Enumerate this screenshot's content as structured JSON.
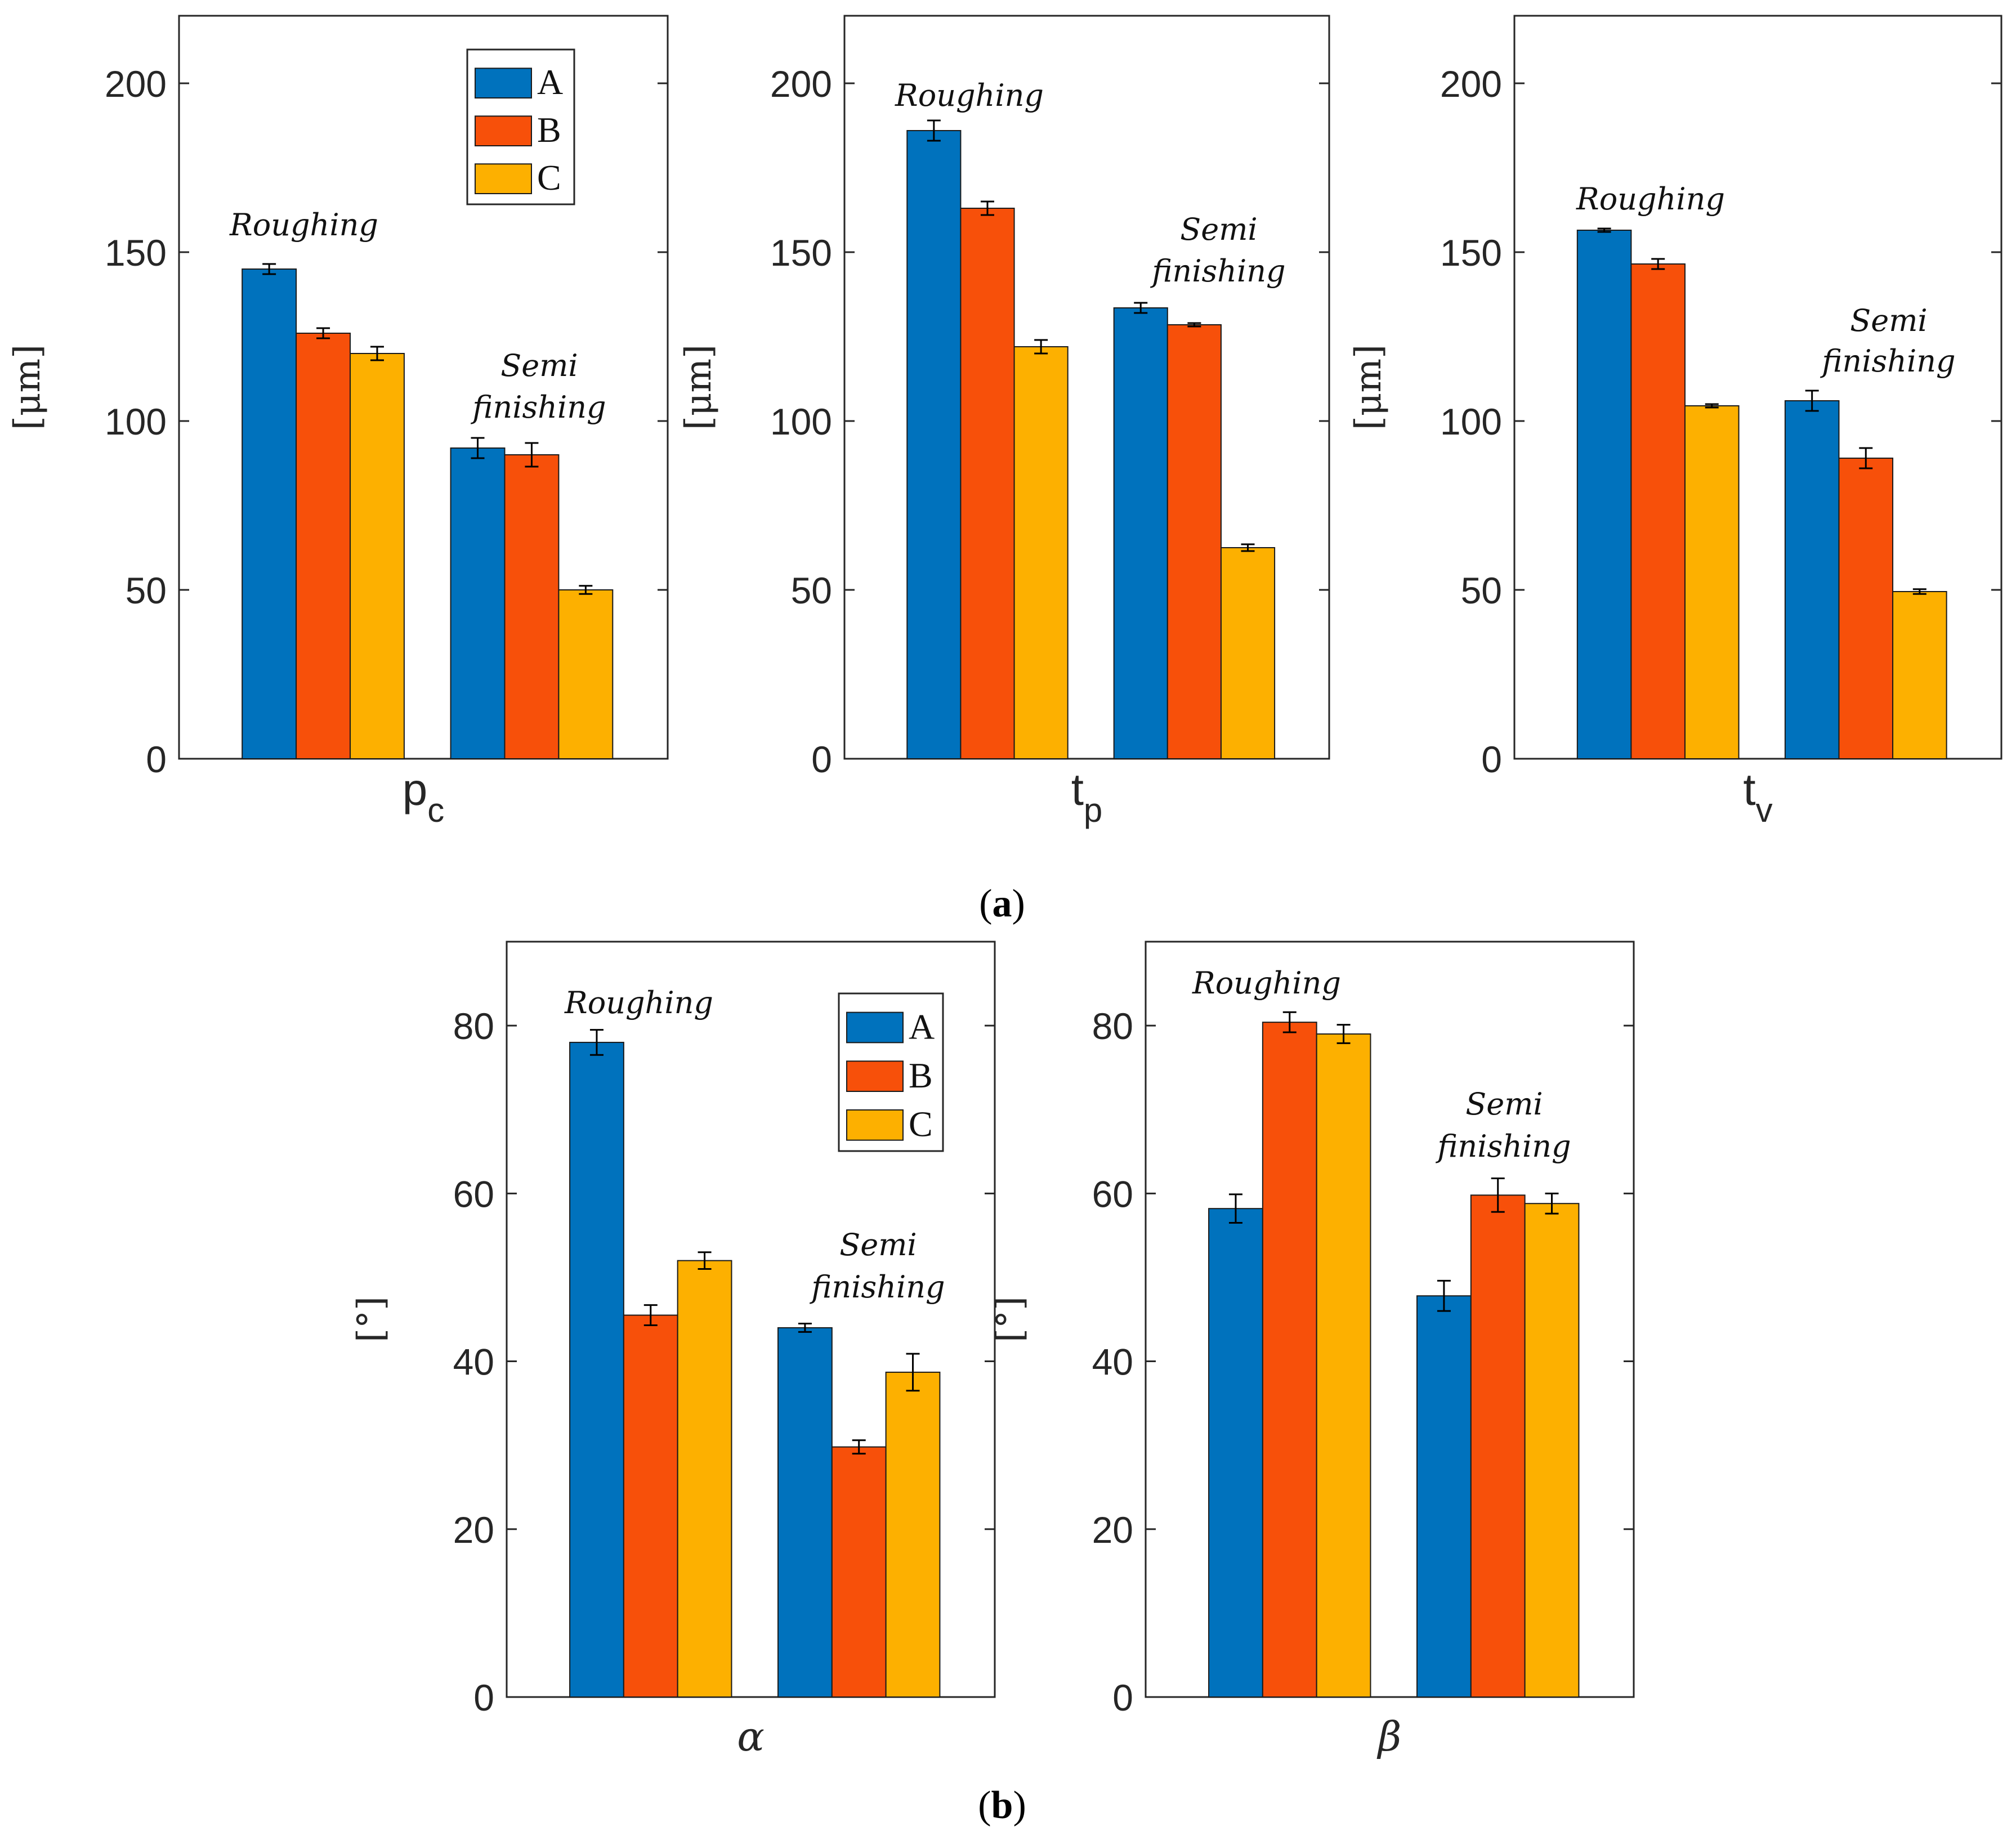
{
  "colors": {
    "A": "#0072BD",
    "B": "#F7500A",
    "C": "#FDB000",
    "axis": "#262626",
    "errorbar": "#000000"
  },
  "legend_labels": [
    "A",
    "B",
    "C"
  ],
  "captions": [
    {
      "open": "(",
      "letter": "a",
      "close": ")"
    },
    {
      "open": "(",
      "letter": "b",
      "close": ")"
    }
  ],
  "chart_data": [
    {
      "type": "bar",
      "panel": "a",
      "xlabel": {
        "main": "p",
        "sub": "c"
      },
      "ylabel": "[μm]",
      "ylim": [
        0,
        220
      ],
      "yticks": [
        0,
        50,
        100,
        150,
        200
      ],
      "categories": [
        "Roughing",
        "Semi finishing"
      ],
      "series": [
        {
          "name": "A",
          "values": [
            145,
            92
          ],
          "errors": [
            1.5,
            3
          ]
        },
        {
          "name": "B",
          "values": [
            126,
            90
          ],
          "errors": [
            1.5,
            3.5
          ]
        },
        {
          "name": "C",
          "values": [
            120,
            50
          ],
          "errors": [
            2,
            1.2
          ]
        }
      ],
      "annotations": [
        {
          "lines": [
            "Roughing"
          ],
          "group": 0
        },
        {
          "lines": [
            "Semi",
            "finishing"
          ],
          "group": 1
        }
      ],
      "legend": true,
      "legend_position": "top-right"
    },
    {
      "type": "bar",
      "panel": "a",
      "xlabel": {
        "main": "t",
        "sub": "p"
      },
      "ylabel": "[μm]",
      "ylim": [
        0,
        220
      ],
      "yticks": [
        0,
        50,
        100,
        150,
        200
      ],
      "categories": [
        "Roughing",
        "Semi finishing"
      ],
      "series": [
        {
          "name": "A",
          "values": [
            186,
            133.5
          ],
          "errors": [
            3,
            1.5
          ]
        },
        {
          "name": "B",
          "values": [
            163,
            128.5
          ],
          "errors": [
            2,
            0.5
          ]
        },
        {
          "name": "C",
          "values": [
            122,
            62.5
          ],
          "errors": [
            2,
            1
          ]
        }
      ],
      "annotations": [
        {
          "lines": [
            "Roughing"
          ],
          "group": 0
        },
        {
          "lines": [
            "Semi",
            "finishing"
          ],
          "group": 1
        }
      ],
      "legend": false
    },
    {
      "type": "bar",
      "panel": "a",
      "xlabel": {
        "main": "t",
        "sub": "v"
      },
      "ylabel": "[μm]",
      "ylim": [
        0,
        220
      ],
      "yticks": [
        0,
        50,
        100,
        150,
        200
      ],
      "categories": [
        "Roughing",
        "Semi finishing"
      ],
      "series": [
        {
          "name": "A",
          "values": [
            156.5,
            106
          ],
          "errors": [
            0.5,
            3
          ]
        },
        {
          "name": "B",
          "values": [
            146.5,
            89
          ],
          "errors": [
            1.5,
            3
          ]
        },
        {
          "name": "C",
          "values": [
            104.5,
            49.5
          ],
          "errors": [
            0.5,
            0.7
          ]
        }
      ],
      "annotations": [
        {
          "lines": [
            "Roughing"
          ],
          "group": 0
        },
        {
          "lines": [
            "Semi",
            "finishing"
          ],
          "group": 1
        }
      ],
      "legend": false
    },
    {
      "type": "bar",
      "panel": "b",
      "xlabel": {
        "greek": "α"
      },
      "ylabel": "[°]",
      "ylim": [
        0,
        90
      ],
      "yticks": [
        0,
        20,
        40,
        60,
        80
      ],
      "categories": [
        "Roughing",
        "Semi finishing"
      ],
      "series": [
        {
          "name": "A",
          "values": [
            78,
            44
          ],
          "errors": [
            1.5,
            0.5
          ]
        },
        {
          "name": "B",
          "values": [
            45.5,
            29.8
          ],
          "errors": [
            1.2,
            0.8
          ]
        },
        {
          "name": "C",
          "values": [
            52,
            38.7
          ],
          "errors": [
            1,
            2.2
          ]
        }
      ],
      "annotations": [
        {
          "lines": [
            "Roughing"
          ],
          "group": 0
        },
        {
          "lines": [
            "Semi",
            "finishing"
          ],
          "group": 1
        }
      ],
      "legend": true,
      "legend_position": "top-right"
    },
    {
      "type": "bar",
      "panel": "b",
      "xlabel": {
        "greek": "β"
      },
      "ylabel": "[°]",
      "ylim": [
        0,
        90
      ],
      "yticks": [
        0,
        20,
        40,
        60,
        80
      ],
      "categories": [
        "Roughing",
        "Semi finishing"
      ],
      "series": [
        {
          "name": "A",
          "values": [
            58.2,
            47.8
          ],
          "errors": [
            1.7,
            1.8
          ]
        },
        {
          "name": "B",
          "values": [
            80.4,
            59.8
          ],
          "errors": [
            1.2,
            2
          ]
        },
        {
          "name": "C",
          "values": [
            79,
            58.8
          ],
          "errors": [
            1.1,
            1.2
          ]
        }
      ],
      "annotations": [
        {
          "lines": [
            "Roughing"
          ],
          "group": 0
        },
        {
          "lines": [
            "Semi",
            "finishing"
          ],
          "group": 1
        }
      ],
      "legend": false
    }
  ]
}
